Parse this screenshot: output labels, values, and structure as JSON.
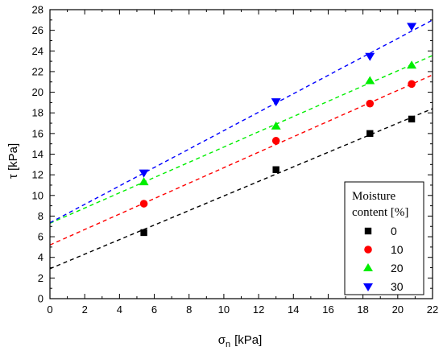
{
  "chart_data": {
    "type": "scatter",
    "x_axis": {
      "label": "σ",
      "label_subscript": "n",
      "label_unit": "[kPa]",
      "range": [
        0,
        22
      ],
      "ticks": [
        0,
        2,
        4,
        6,
        8,
        10,
        12,
        14,
        16,
        18,
        20,
        22
      ]
    },
    "y_axis": {
      "label": "τ [kPa]",
      "range": [
        0,
        28
      ],
      "ticks": [
        0,
        2,
        4,
        6,
        8,
        10,
        12,
        14,
        16,
        18,
        20,
        22,
        24,
        26,
        28
      ]
    },
    "legend": {
      "title_line1": "Moisture",
      "title_line2": "content [%]",
      "placement": "bottom-right"
    },
    "grid": false,
    "series": [
      {
        "name": "0",
        "color": "#000000",
        "marker": "square",
        "points": [
          [
            5.4,
            6.4
          ],
          [
            13.0,
            12.5
          ],
          [
            18.4,
            16.0
          ],
          [
            20.8,
            17.4
          ]
        ],
        "fit": {
          "intercept": 2.9,
          "slope": 0.705
        }
      },
      {
        "name": "10",
        "color": "#ff0000",
        "marker": "circle",
        "points": [
          [
            5.4,
            9.2
          ],
          [
            13.0,
            15.3
          ],
          [
            18.4,
            18.9
          ],
          [
            20.8,
            20.8
          ]
        ],
        "fit": {
          "intercept": 5.2,
          "slope": 0.749
        }
      },
      {
        "name": "20",
        "color": "#00ee00",
        "marker": "triangle-up",
        "points": [
          [
            5.4,
            11.3
          ],
          [
            13.0,
            16.7
          ],
          [
            18.4,
            21.1
          ],
          [
            20.8,
            22.6
          ]
        ],
        "fit": {
          "intercept": 7.3,
          "slope": 0.739
        }
      },
      {
        "name": "30",
        "color": "#0000ff",
        "marker": "triangle-down",
        "points": [
          [
            5.4,
            12.2
          ],
          [
            13.0,
            19.1
          ],
          [
            18.4,
            23.5
          ],
          [
            20.8,
            26.4
          ]
        ],
        "fit": {
          "intercept": 7.35,
          "slope": 0.893
        }
      }
    ]
  }
}
